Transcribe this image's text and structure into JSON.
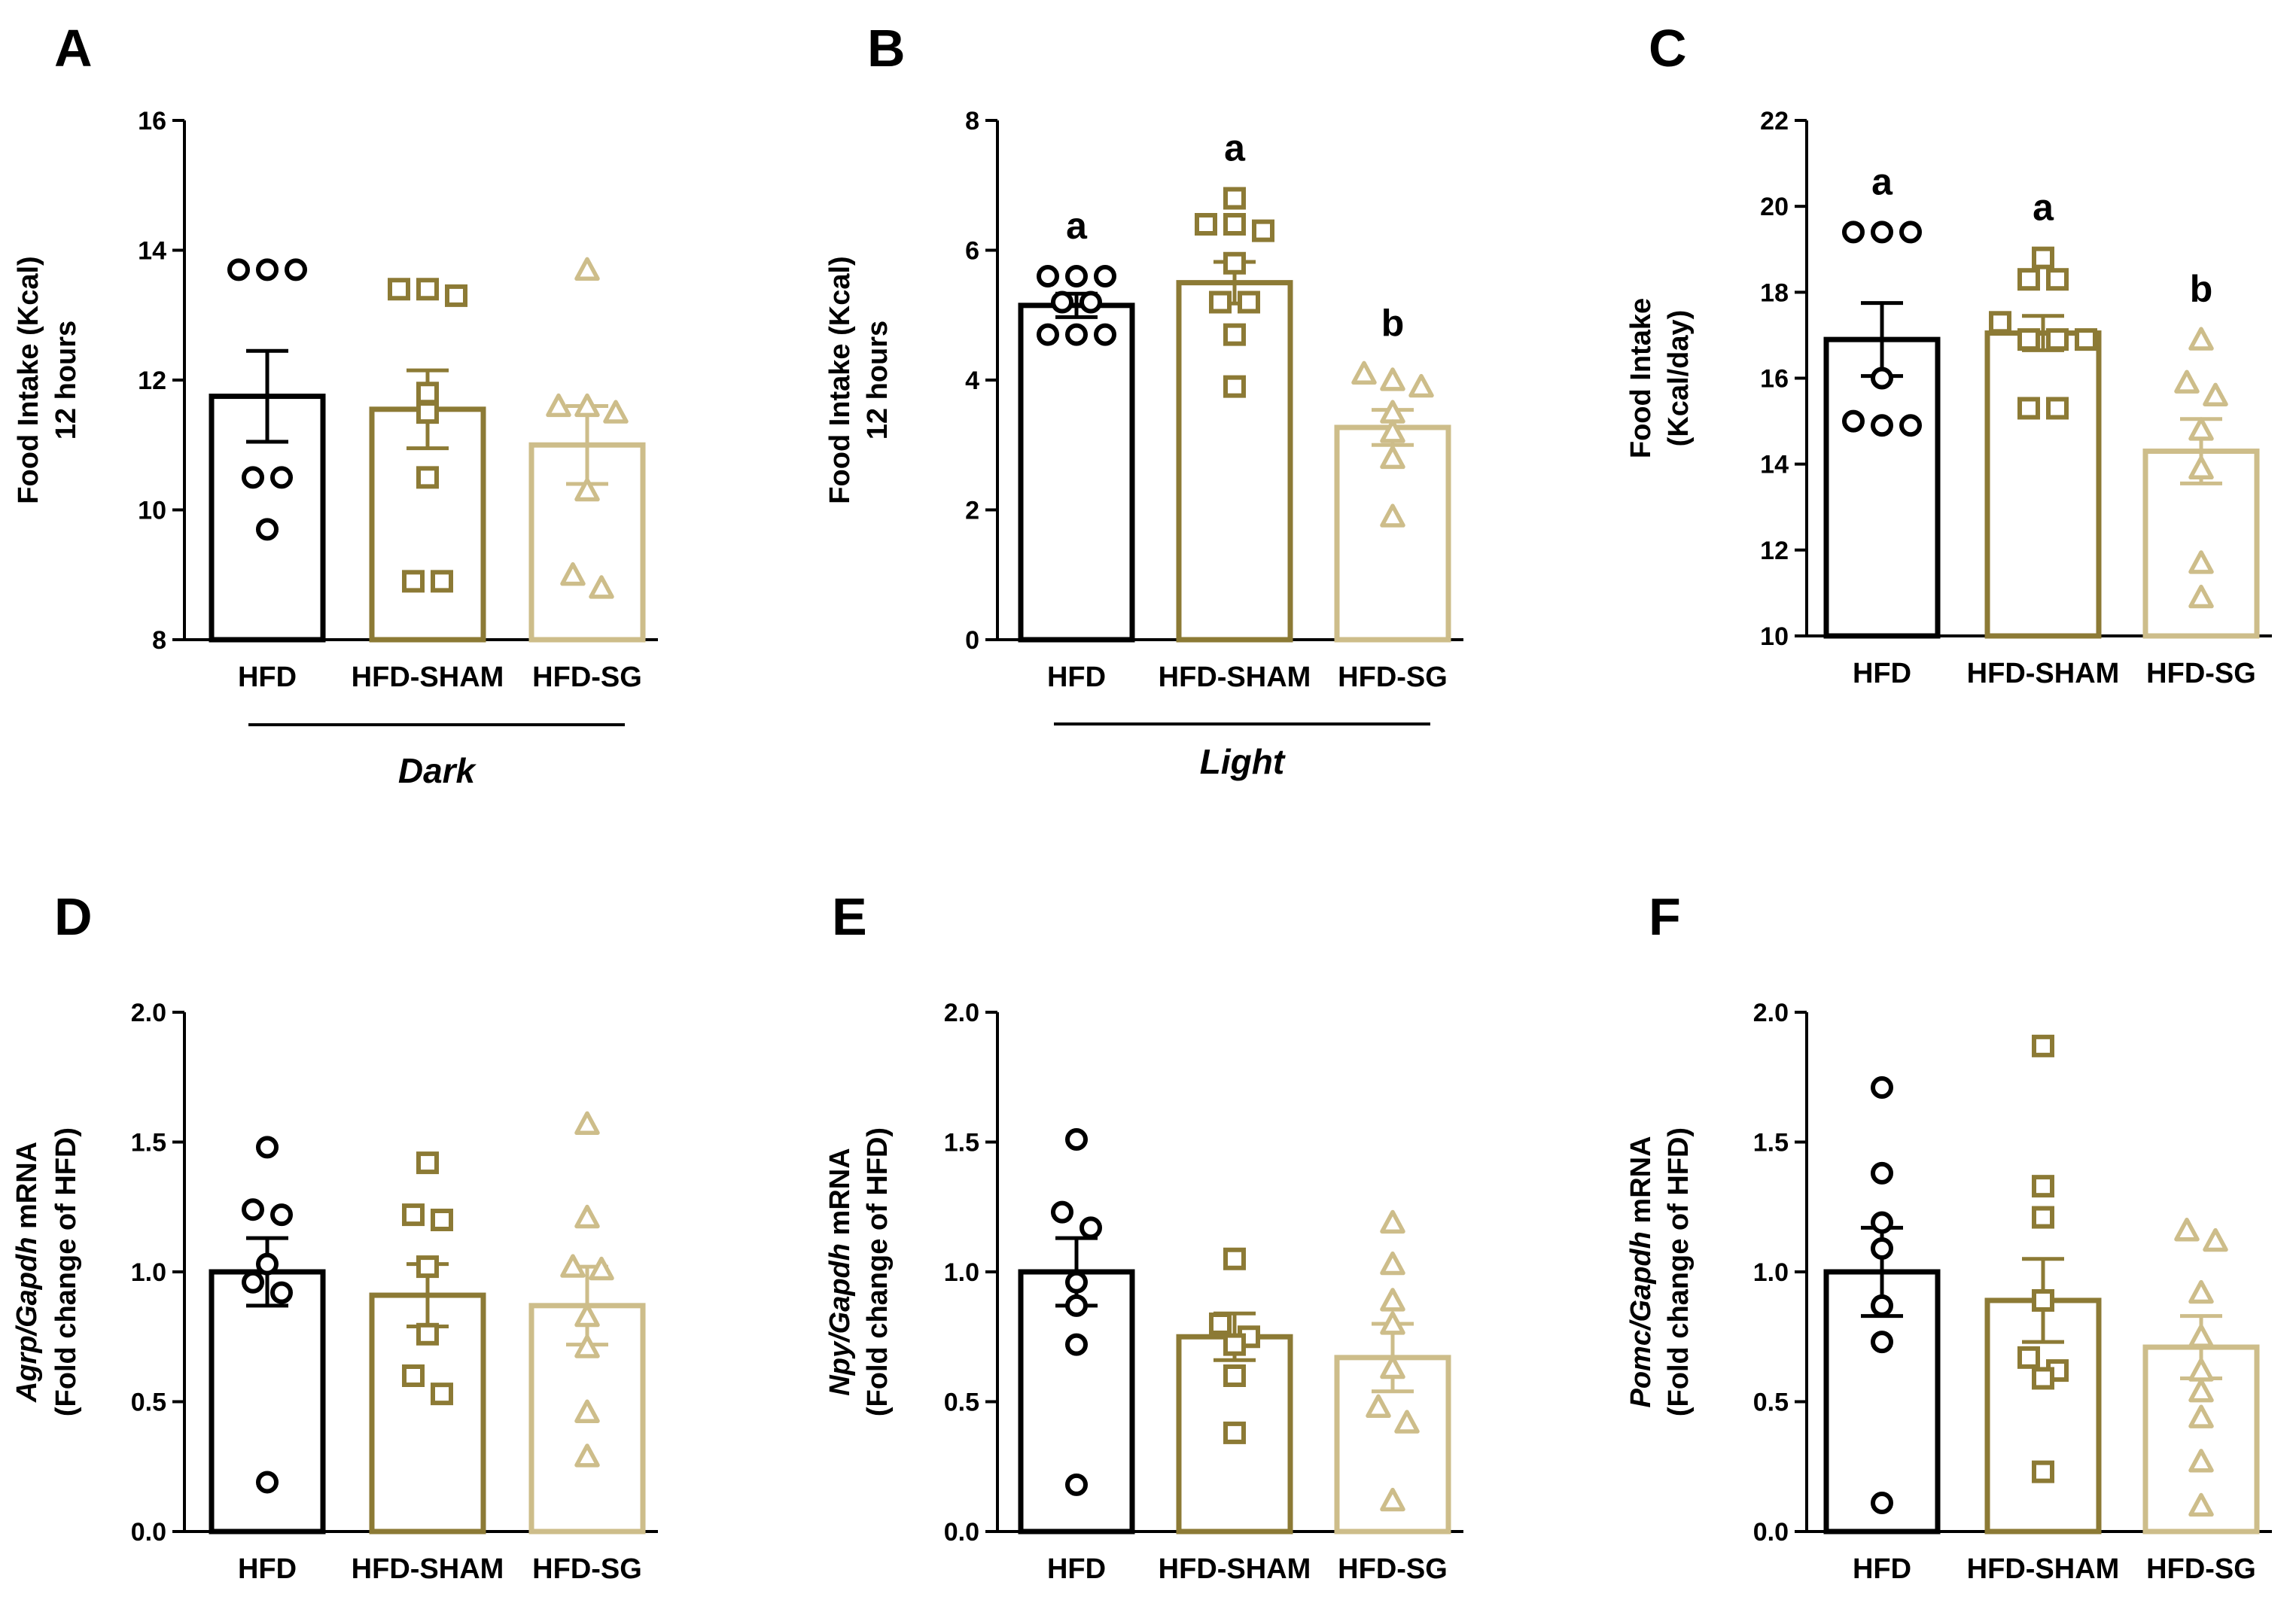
{
  "colors": {
    "HFD": "#000000",
    "HFD-SHAM": "#8c7a35",
    "HFD-SG": "#cdbd8a"
  },
  "chart_data": [
    {
      "id": "A",
      "type": "bar",
      "panel_label": "A",
      "categories": [
        "HFD",
        "HFD-SHAM",
        "HFD-SG"
      ],
      "ylabel_lines": [
        {
          "text": "Food Intake (Kcal)"
        },
        {
          "text": "12 hours"
        }
      ],
      "ylim": [
        8,
        16
      ],
      "yticks": [
        8,
        10,
        12,
        14,
        16
      ],
      "tick_decimals": 0,
      "values": [
        11.75,
        11.55,
        11.0
      ],
      "sem": [
        0.7,
        0.6,
        0.6
      ],
      "points": [
        [
          13.7,
          13.7,
          13.7,
          10.5,
          10.5,
          9.7
        ],
        [
          13.4,
          13.4,
          13.3,
          11.8,
          11.5,
          10.5,
          8.9,
          8.9
        ],
        [
          13.7,
          11.6,
          11.6,
          11.5,
          10.3,
          9.0,
          8.8
        ]
      ],
      "sig_letters": [],
      "group_label": "Dark"
    },
    {
      "id": "B",
      "type": "bar",
      "panel_label": "B",
      "categories": [
        "HFD",
        "HFD-SHAM",
        "HFD-SG"
      ],
      "ylabel_lines": [
        {
          "text": "Food Intake (Kcal)"
        },
        {
          "text": "12 hours"
        }
      ],
      "ylim": [
        0,
        8
      ],
      "yticks": [
        0,
        2,
        4,
        6,
        8
      ],
      "tick_decimals": 0,
      "values": [
        5.15,
        5.5,
        3.27
      ],
      "sem": [
        0.18,
        0.32,
        0.27
      ],
      "points": [
        [
          5.6,
          5.6,
          5.6,
          5.2,
          5.2,
          4.7,
          4.7,
          4.7
        ],
        [
          6.8,
          6.4,
          6.4,
          6.3,
          5.8,
          5.2,
          5.2,
          4.7,
          3.9
        ],
        [
          4.1,
          4.0,
          3.9,
          3.5,
          3.2,
          2.8,
          1.9
        ]
      ],
      "sig_letters": [
        "a",
        "a",
        "b"
      ],
      "group_label": "Light"
    },
    {
      "id": "C",
      "type": "bar",
      "panel_label": "C",
      "categories": [
        "HFD",
        "HFD-SHAM",
        "HFD-SG"
      ],
      "ylabel_lines": [
        {
          "text": "Food Intake"
        },
        {
          "text": "(Kcal/day)"
        }
      ],
      "ylim": [
        10,
        22
      ],
      "yticks": [
        10,
        12,
        14,
        16,
        18,
        20,
        22
      ],
      "tick_decimals": 0,
      "values": [
        16.9,
        17.05,
        14.3
      ],
      "sem": [
        0.85,
        0.4,
        0.75
      ],
      "points": [
        [
          19.4,
          19.4,
          19.4,
          16.0,
          15.0,
          14.9,
          14.9
        ],
        [
          18.8,
          18.3,
          18.3,
          17.3,
          16.9,
          16.9,
          16.9,
          15.3,
          15.3
        ],
        [
          16.9,
          15.9,
          15.6,
          14.8,
          13.9,
          11.7,
          10.9
        ]
      ],
      "sig_letters": [
        "a",
        "a",
        "b"
      ],
      "group_label": ""
    },
    {
      "id": "D",
      "type": "bar",
      "panel_label": "D",
      "categories": [
        "HFD",
        "HFD-SHAM",
        "HFD-SG"
      ],
      "ylabel_lines": [
        {
          "text": "Agrp/Gapdh mRNA",
          "italic": "Agrp/Gapdh",
          "rest": " mRNA"
        },
        {
          "text": "(Fold change of HFD)"
        }
      ],
      "ylim": [
        0,
        2
      ],
      "yticks": [
        0,
        0.5,
        1.0,
        1.5,
        2.0
      ],
      "tick_decimals": 1,
      "values": [
        1.0,
        0.91,
        0.87
      ],
      "sem": [
        0.13,
        0.12,
        0.15
      ],
      "points": [
        [
          1.48,
          1.24,
          1.22,
          1.03,
          0.96,
          0.92,
          0.19
        ],
        [
          1.42,
          1.22,
          1.2,
          1.02,
          0.76,
          0.6,
          0.53
        ],
        [
          1.57,
          1.21,
          1.02,
          1.01,
          0.83,
          0.71,
          0.46,
          0.29
        ]
      ],
      "sig_letters": [],
      "group_label": ""
    },
    {
      "id": "E",
      "type": "bar",
      "panel_label": "E",
      "categories": [
        "HFD",
        "HFD-SHAM",
        "HFD-SG"
      ],
      "ylabel_lines": [
        {
          "text": "Npy/Gapdh mRNA",
          "italic": "Npy/Gapdh",
          "rest": " mRNA"
        },
        {
          "text": "(Fold change of HFD)"
        }
      ],
      "ylim": [
        0,
        2
      ],
      "yticks": [
        0,
        0.5,
        1.0,
        1.5,
        2.0
      ],
      "tick_decimals": 1,
      "values": [
        1.0,
        0.75,
        0.67
      ],
      "sem": [
        0.13,
        0.09,
        0.13
      ],
      "points": [
        [
          1.51,
          1.23,
          1.17,
          0.96,
          0.87,
          0.72,
          0.18
        ],
        [
          1.05,
          0.8,
          0.75,
          0.72,
          0.6,
          0.38
        ],
        [
          1.19,
          1.03,
          0.89,
          0.8,
          0.63,
          0.48,
          0.42,
          0.12
        ]
      ],
      "sig_letters": [],
      "group_label": ""
    },
    {
      "id": "F",
      "type": "bar",
      "panel_label": "F",
      "categories": [
        "HFD",
        "HFD-SHAM",
        "HFD-SG"
      ],
      "ylabel_lines": [
        {
          "text": "Pomc/Gapdh mRNA",
          "italic": "Pomc/Gapdh",
          "rest": " mRNA"
        },
        {
          "text": "(Fold change of HFD)"
        }
      ],
      "ylim": [
        0,
        2
      ],
      "yticks": [
        0,
        0.5,
        1.0,
        1.5,
        2.0
      ],
      "tick_decimals": 1,
      "values": [
        1.0,
        0.89,
        0.71
      ],
      "sem": [
        0.17,
        0.16,
        0.12
      ],
      "points": [
        [
          1.71,
          1.38,
          1.19,
          1.09,
          0.87,
          0.73,
          0.11
        ],
        [
          1.87,
          1.33,
          1.21,
          0.89,
          0.67,
          0.62,
          0.59,
          0.23
        ],
        [
          1.16,
          1.12,
          0.92,
          0.75,
          0.62,
          0.54,
          0.44,
          0.27,
          0.1
        ]
      ],
      "sig_letters": [],
      "group_label": ""
    }
  ]
}
